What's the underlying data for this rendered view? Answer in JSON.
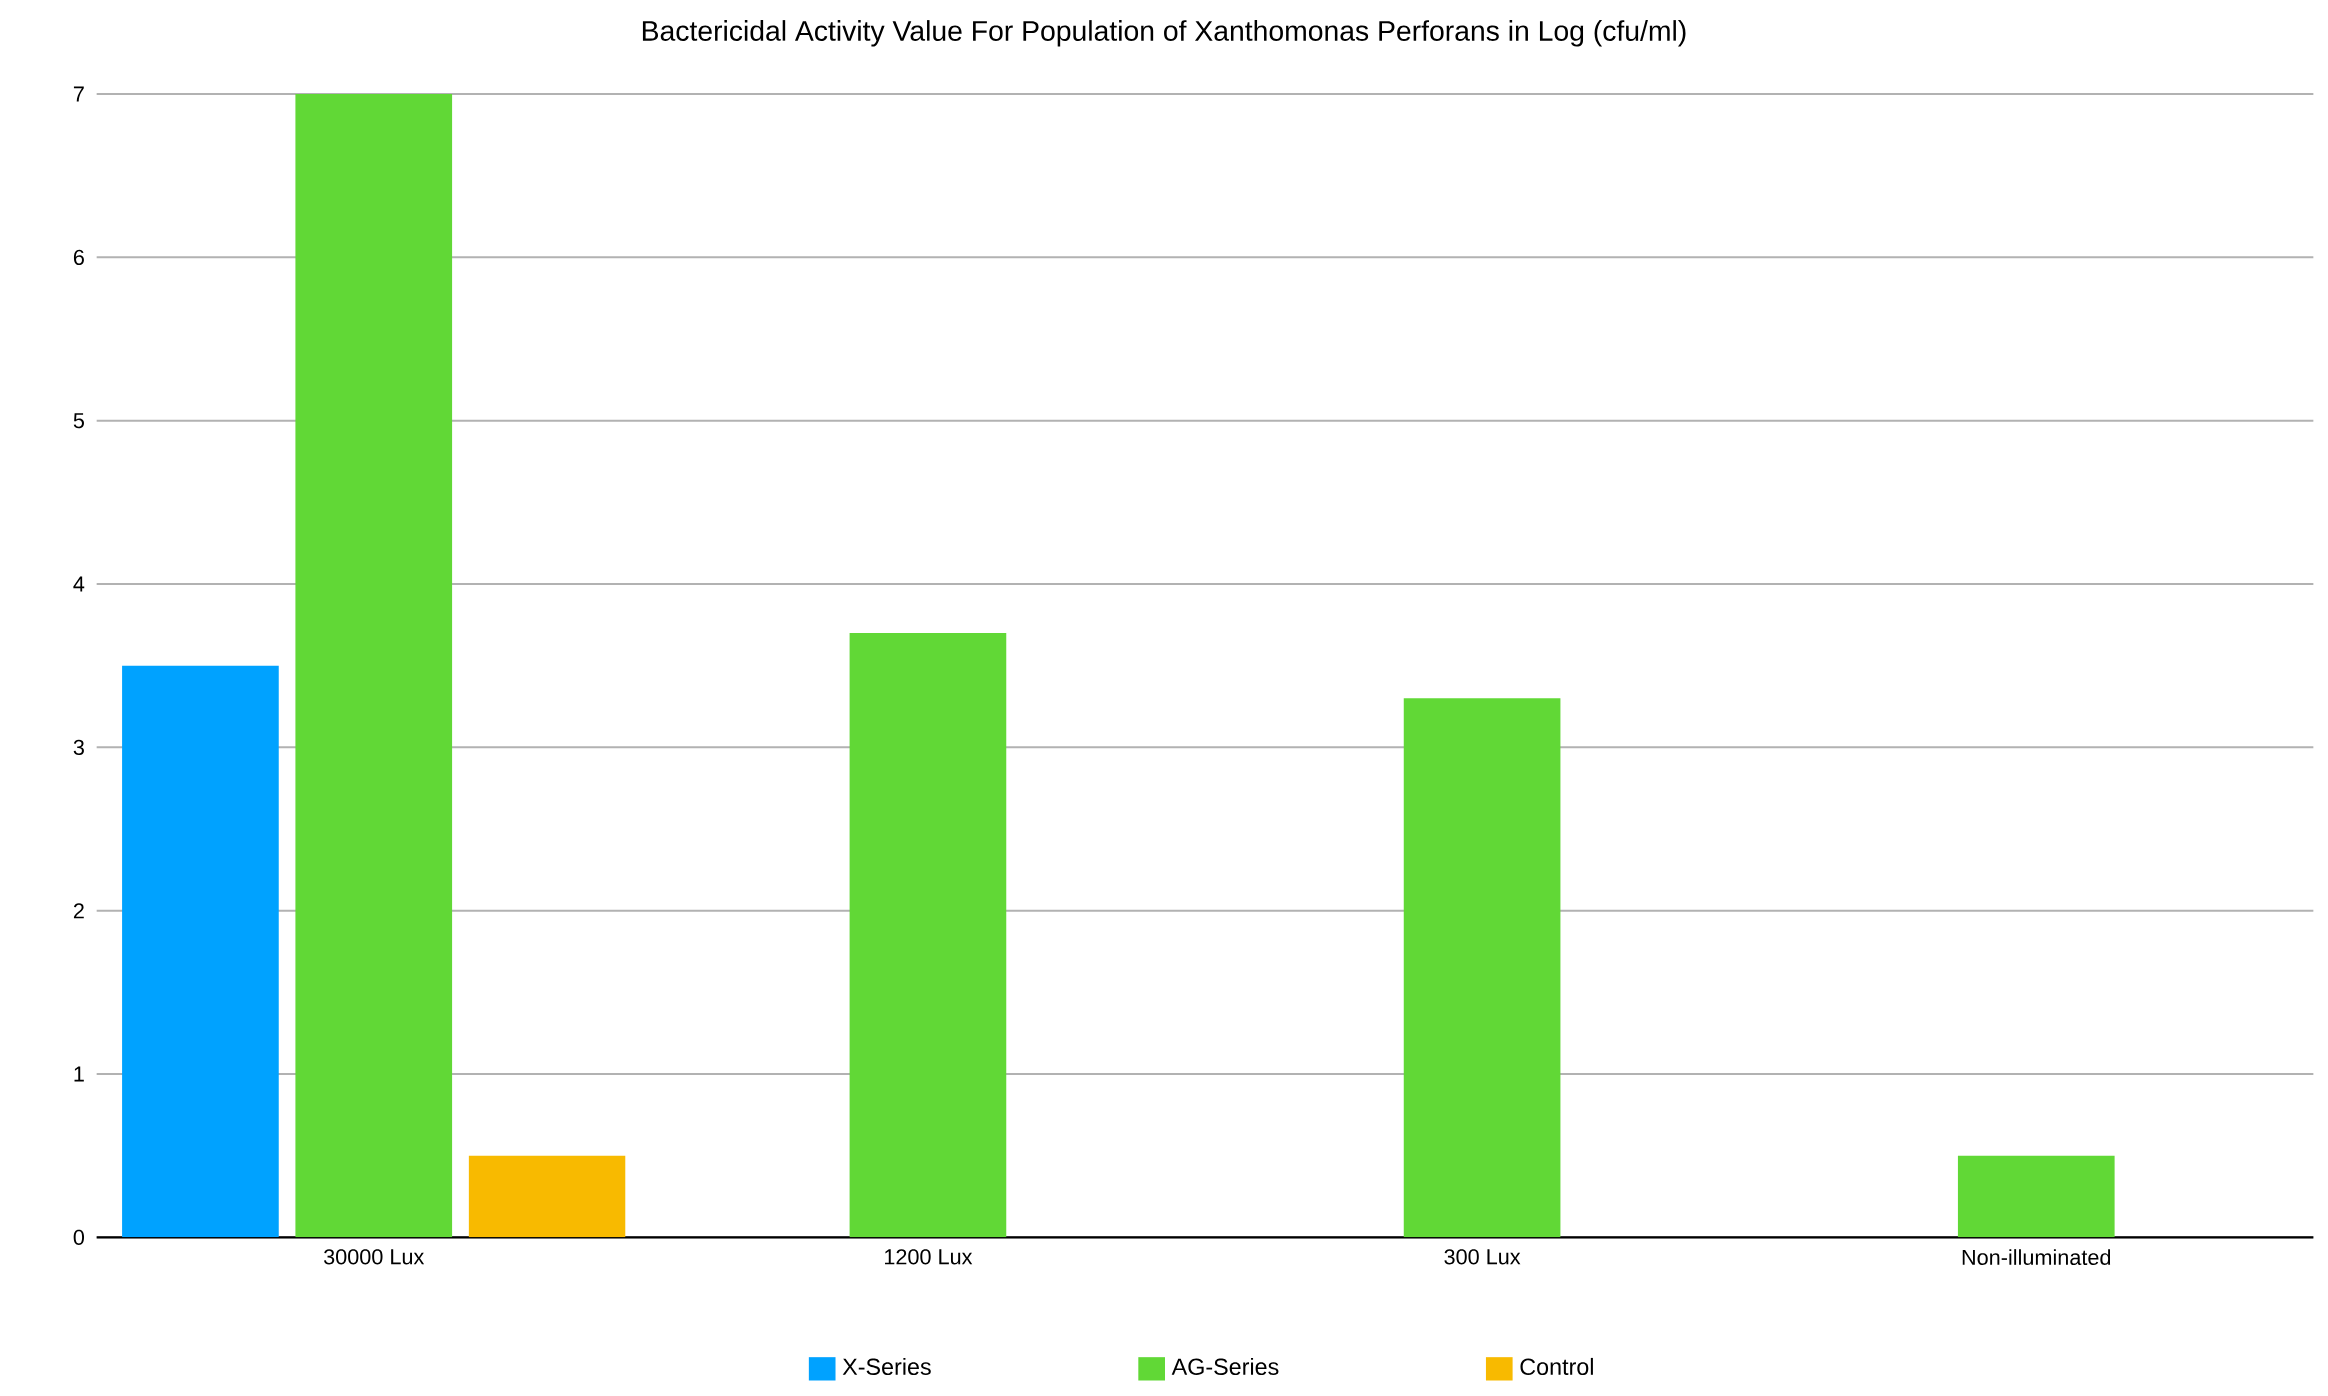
{
  "chart_data": {
    "type": "bar",
    "title": "Bactericidal Activity Value For Population of Xanthomonas Perforans in Log (cfu/ml)",
    "categories": [
      "30000 Lux",
      "1200 Lux",
      "300 Lux",
      "Non-illuminated"
    ],
    "series": [
      {
        "name": "X-Series",
        "color": "#00a2ff",
        "values": [
          3.5,
          null,
          null,
          null
        ]
      },
      {
        "name": "AG-Series",
        "color": "#61d836",
        "values": [
          7,
          3.7,
          3.3,
          0.5
        ]
      },
      {
        "name": "Control",
        "color": "#f8ba00",
        "values": [
          0.5,
          null,
          null,
          null
        ]
      }
    ],
    "ylim": [
      0,
      7
    ],
    "yticks": [
      0,
      1,
      2,
      3,
      4,
      5,
      6,
      7
    ],
    "grid": "y",
    "legend": "bottom"
  }
}
